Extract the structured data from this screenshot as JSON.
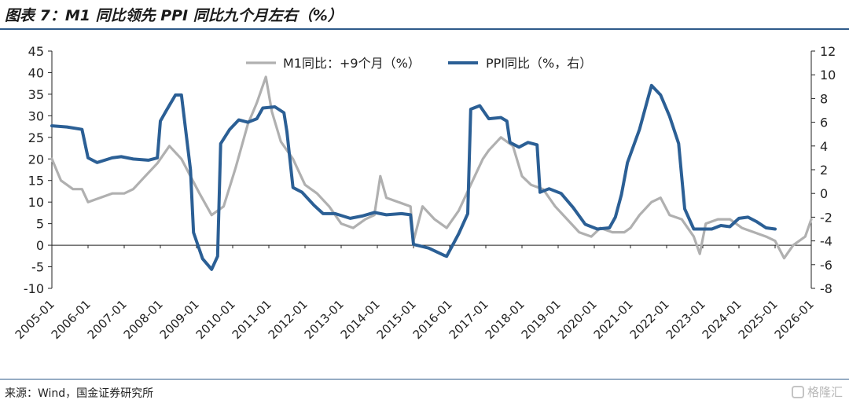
{
  "header": {
    "title": "图表 7：M1 同比领先 PPI 同比九个月左右（%）"
  },
  "footer": {
    "source": "来源：Wind，国金证券研究所",
    "watermark": "格隆汇"
  },
  "chart_data": {
    "type": "line",
    "title": "",
    "xlabel": "",
    "ylabel_left": "",
    "ylabel_right": "",
    "grid": false,
    "legend_position": "top-center",
    "y_left": {
      "min": -10,
      "max": 45,
      "ticks": [
        -10,
        -5,
        0,
        5,
        10,
        15,
        20,
        25,
        30,
        35,
        40,
        45
      ]
    },
    "y_right": {
      "min": -8,
      "max": 12,
      "ticks": [
        -8,
        -6,
        -4,
        -2,
        0,
        2,
        4,
        6,
        8,
        10,
        12
      ]
    },
    "x_range": [
      "2005-01",
      "2026-01"
    ],
    "x_ticks": [
      "2005-01",
      "2006-01",
      "2007-01",
      "2008-01",
      "2009-01",
      "2010-01",
      "2011-01",
      "2012-01",
      "2013-01",
      "2014-01",
      "2015-01",
      "2016-01",
      "2017-01",
      "2018-01",
      "2019-01",
      "2020-01",
      "2021-01",
      "2022-01",
      "2023-01",
      "2024-01",
      "2025-01",
      "2026-01"
    ],
    "colors": {
      "m1": "#b0b0b0",
      "ppi": "#2b5f95",
      "axis": "#222222"
    },
    "series": [
      {
        "name": "M1同比：+9个月（%）",
        "axis": "left",
        "color": "#b0b0b0",
        "points": [
          [
            "2005-01",
            20
          ],
          [
            "2005-04",
            15
          ],
          [
            "2005-08",
            13
          ],
          [
            "2005-11",
            13
          ],
          [
            "2006-01",
            10
          ],
          [
            "2006-05",
            11
          ],
          [
            "2006-09",
            12
          ],
          [
            "2007-01",
            12
          ],
          [
            "2007-04",
            13
          ],
          [
            "2007-08",
            16
          ],
          [
            "2007-12",
            19
          ],
          [
            "2008-01",
            20
          ],
          [
            "2008-04",
            23
          ],
          [
            "2008-08",
            20
          ],
          [
            "2008-11",
            16
          ],
          [
            "2009-02",
            12
          ],
          [
            "2009-06",
            7
          ],
          [
            "2009-10",
            9
          ],
          [
            "2010-02",
            18
          ],
          [
            "2010-06",
            28
          ],
          [
            "2010-09",
            33
          ],
          [
            "2010-12",
            39
          ],
          [
            "2011-02",
            31
          ],
          [
            "2011-05",
            24
          ],
          [
            "2011-09",
            20
          ],
          [
            "2012-01",
            14
          ],
          [
            "2012-05",
            12
          ],
          [
            "2012-09",
            9
          ],
          [
            "2013-01",
            5
          ],
          [
            "2013-05",
            4
          ],
          [
            "2013-09",
            6
          ],
          [
            "2013-12",
            7
          ],
          [
            "2014-02",
            16
          ],
          [
            "2014-04",
            11
          ],
          [
            "2014-08",
            10
          ],
          [
            "2014-12",
            9
          ],
          [
            "2015-01",
            1
          ],
          [
            "2015-04",
            9
          ],
          [
            "2015-08",
            6
          ],
          [
            "2015-12",
            4
          ],
          [
            "2016-04",
            8
          ],
          [
            "2016-08",
            14
          ],
          [
            "2016-12",
            20
          ],
          [
            "2017-02",
            22
          ],
          [
            "2017-06",
            25
          ],
          [
            "2017-10",
            23
          ],
          [
            "2018-01",
            16
          ],
          [
            "2018-04",
            14
          ],
          [
            "2018-08",
            13
          ],
          [
            "2018-12",
            9
          ],
          [
            "2019-04",
            6
          ],
          [
            "2019-08",
            3
          ],
          [
            "2019-12",
            2
          ],
          [
            "2020-03",
            4
          ],
          [
            "2020-07",
            3
          ],
          [
            "2020-11",
            3
          ],
          [
            "2021-01",
            4
          ],
          [
            "2021-04",
            7
          ],
          [
            "2021-08",
            10
          ],
          [
            "2021-11",
            11
          ],
          [
            "2022-02",
            7
          ],
          [
            "2022-06",
            6
          ],
          [
            "2022-10",
            2
          ],
          [
            "2022-12",
            -2
          ],
          [
            "2023-02",
            5
          ],
          [
            "2023-06",
            6
          ],
          [
            "2023-10",
            6
          ],
          [
            "2024-02",
            4
          ],
          [
            "2024-06",
            3
          ],
          [
            "2024-10",
            2
          ],
          [
            "2025-01",
            1
          ],
          [
            "2025-04",
            -3
          ],
          [
            "2025-07",
            0
          ],
          [
            "2025-11",
            2
          ],
          [
            "2026-01",
            6
          ]
        ]
      },
      {
        "name": "PPI同比（%，右）",
        "axis": "right",
        "color": "#2b5f95",
        "points": [
          [
            "2005-01",
            5.7
          ],
          [
            "2005-06",
            5.6
          ],
          [
            "2005-11",
            5.4
          ],
          [
            "2006-01",
            3.0
          ],
          [
            "2006-04",
            2.6
          ],
          [
            "2006-09",
            3.0
          ],
          [
            "2006-12",
            3.1
          ],
          [
            "2007-04",
            2.9
          ],
          [
            "2007-09",
            2.8
          ],
          [
            "2007-12",
            3.0
          ],
          [
            "2008-01",
            6.1
          ],
          [
            "2008-03",
            7.0
          ],
          [
            "2008-06",
            8.3
          ],
          [
            "2008-08",
            8.3
          ],
          [
            "2008-11",
            2.0
          ],
          [
            "2008-12",
            -3.3
          ],
          [
            "2009-03",
            -5.5
          ],
          [
            "2009-06",
            -6.4
          ],
          [
            "2009-08",
            -5.3
          ],
          [
            "2009-09",
            4.2
          ],
          [
            "2009-12",
            5.4
          ],
          [
            "2010-03",
            6.2
          ],
          [
            "2010-06",
            6.0
          ],
          [
            "2010-09",
            6.3
          ],
          [
            "2010-11",
            7.2
          ],
          [
            "2011-03",
            7.3
          ],
          [
            "2011-06",
            6.8
          ],
          [
            "2011-07",
            5.2
          ],
          [
            "2011-09",
            0.5
          ],
          [
            "2011-12",
            0.1
          ],
          [
            "2012-04",
            -1.0
          ],
          [
            "2012-07",
            -1.7
          ],
          [
            "2012-11",
            -1.7
          ],
          [
            "2013-04",
            -2.1
          ],
          [
            "2013-08",
            -1.9
          ],
          [
            "2013-12",
            -1.6
          ],
          [
            "2014-04",
            -1.8
          ],
          [
            "2014-09",
            -1.7
          ],
          [
            "2014-12",
            -1.8
          ],
          [
            "2015-01",
            -4.3
          ],
          [
            "2015-06",
            -4.6
          ],
          [
            "2015-11",
            -5.2
          ],
          [
            "2015-12",
            -5.3
          ],
          [
            "2016-04",
            -3.4
          ],
          [
            "2016-07",
            -1.7
          ],
          [
            "2016-08",
            7.1
          ],
          [
            "2016-11",
            7.4
          ],
          [
            "2017-02",
            6.3
          ],
          [
            "2017-06",
            6.4
          ],
          [
            "2017-08",
            6.1
          ],
          [
            "2017-09",
            4.3
          ],
          [
            "2017-12",
            3.9
          ],
          [
            "2018-03",
            4.3
          ],
          [
            "2018-06",
            4.1
          ],
          [
            "2018-07",
            0.1
          ],
          [
            "2018-10",
            0.4
          ],
          [
            "2019-02",
            0.0
          ],
          [
            "2019-06",
            -1.2
          ],
          [
            "2019-10",
            -2.6
          ],
          [
            "2020-02",
            -3.0
          ],
          [
            "2020-06",
            -2.9
          ],
          [
            "2020-08",
            -2.0
          ],
          [
            "2020-10",
            -0.1
          ],
          [
            "2020-12",
            2.6
          ],
          [
            "2021-04",
            5.4
          ],
          [
            "2021-07",
            8.2
          ],
          [
            "2021-08",
            9.1
          ],
          [
            "2021-11",
            8.3
          ],
          [
            "2022-02",
            6.5
          ],
          [
            "2022-05",
            4.2
          ],
          [
            "2022-07",
            -1.3
          ],
          [
            "2022-10",
            -3.0
          ],
          [
            "2023-01",
            -3.0
          ],
          [
            "2023-04",
            -3.0
          ],
          [
            "2023-07",
            -2.7
          ],
          [
            "2023-10",
            -2.8
          ],
          [
            "2024-01",
            -2.1
          ],
          [
            "2024-04",
            -2.0
          ],
          [
            "2024-07",
            -2.4
          ],
          [
            "2024-10",
            -2.9
          ],
          [
            "2025-01",
            -3.0
          ]
        ]
      }
    ]
  }
}
